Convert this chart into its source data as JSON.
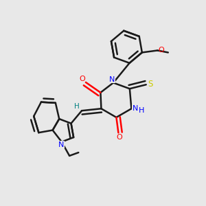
{
  "bg_color": "#e8e8e8",
  "bond_color": "#1a1a1a",
  "bond_width": 1.8,
  "fig_size": [
    3.0,
    3.0
  ],
  "dpi": 100,
  "atom_colors": {
    "N": "#0000ff",
    "O": "#ff0000",
    "S": "#cccc00",
    "H_bridge": "#008080",
    "C": "#1a1a1a"
  }
}
